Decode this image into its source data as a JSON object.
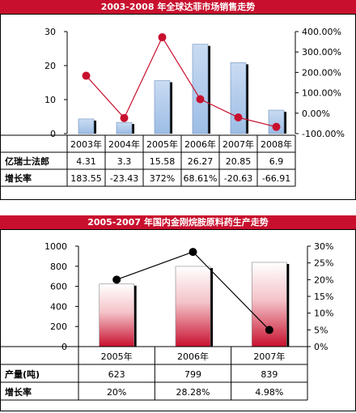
{
  "chart_data": [
    {
      "type": "bar",
      "title": "2003-2008 年全球达菲市场销售走势",
      "categories": [
        "2003年",
        "2004年",
        "2005年",
        "2006年",
        "2007年",
        "2008年"
      ],
      "series": [
        {
          "name": "亿瑞士法郎",
          "type": "bar",
          "values": [
            4.31,
            3.3,
            15.58,
            26.27,
            20.85,
            6.9
          ],
          "color": "#a9c4e6"
        },
        {
          "name": "增长率",
          "type": "line",
          "axis": "right",
          "values": [
            183.55,
            -23.43,
            372,
            68.61,
            -20.63,
            -66.91
          ],
          "color": "#c8102e"
        }
      ],
      "left_ylim": [
        0,
        30
      ],
      "left_ticks": [
        "0",
        "10",
        "20",
        "30"
      ],
      "right_ylim": [
        -100,
        400
      ],
      "right_ticks": [
        "-100.00%",
        "0.00%",
        "100.00%",
        "200.00%",
        "300.00%",
        "400.00%"
      ],
      "table_rows": [
        {
          "label": "亿瑞士法郎",
          "cells": [
            "4.31",
            "3.3",
            "15.58",
            "26.27",
            "20.85",
            "6.9"
          ]
        },
        {
          "label": "增长率",
          "cells": [
            "183.55",
            "-23.43",
            "372%",
            "68.61%",
            "-20.63",
            "-66.91"
          ]
        }
      ]
    },
    {
      "type": "bar",
      "title": "2005-2007 年国内金刚烷胺原料药生产走势",
      "categories": [
        "2005年",
        "2006年",
        "2007年"
      ],
      "series": [
        {
          "name": "产量(吨)",
          "type": "bar",
          "values": [
            623,
            799,
            839
          ],
          "color": "#c8102e"
        },
        {
          "name": "增长率",
          "type": "line",
          "axis": "right",
          "values": [
            20,
            28.28,
            4.98
          ],
          "color": "#000000"
        }
      ],
      "left_ylim": [
        0,
        1000
      ],
      "left_ticks": [
        "0",
        "200",
        "400",
        "600",
        "800",
        "1000"
      ],
      "right_ylim": [
        0,
        30
      ],
      "right_ticks": [
        "0%",
        "5%",
        "10%",
        "15%",
        "20%",
        "25%",
        "30%"
      ],
      "table_rows": [
        {
          "label": "产量(吨)",
          "cells": [
            "623",
            "799",
            "839"
          ]
        },
        {
          "label": "增长率",
          "cells": [
            "20%",
            "28.28%",
            "4.98%"
          ]
        }
      ]
    }
  ]
}
